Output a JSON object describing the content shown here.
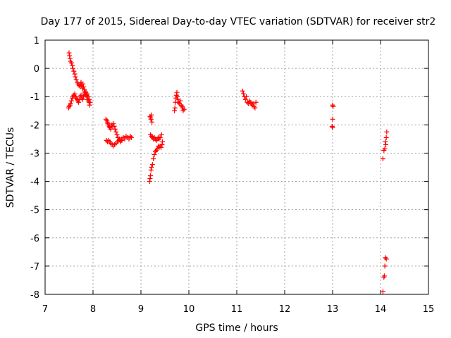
{
  "chart_data": {
    "type": "scatter",
    "title": "Day 177 of 2015, Sidereal Day-to-day VTEC variation (SDTVAR) for receiver str2",
    "xlabel": "GPS time / hours",
    "ylabel": "SDTVAR / TECUs",
    "xlim": [
      7,
      15
    ],
    "ylim": [
      -8,
      1
    ],
    "xticks": [
      "7",
      "8",
      "9",
      "10",
      "11",
      "12",
      "13",
      "14",
      "15"
    ],
    "yticks": [
      "1",
      "0",
      "-1",
      "-2",
      "-3",
      "-4",
      "-5",
      "-6",
      "-7",
      "-8"
    ],
    "grid": true,
    "marker": "+",
    "marker_color": "#ff0000",
    "series": [
      {
        "name": "SDTVAR",
        "points": [
          [
            7.5,
            0.55
          ],
          [
            7.51,
            0.45
          ],
          [
            7.52,
            0.35
          ],
          [
            7.53,
            0.25
          ],
          [
            7.55,
            0.2
          ],
          [
            7.57,
            0.1
          ],
          [
            7.58,
            0.0
          ],
          [
            7.6,
            -0.1
          ],
          [
            7.62,
            -0.2
          ],
          [
            7.63,
            -0.3
          ],
          [
            7.65,
            -0.4
          ],
          [
            7.67,
            -0.5
          ],
          [
            7.69,
            -0.55
          ],
          [
            7.71,
            -0.6
          ],
          [
            7.73,
            -0.65
          ],
          [
            7.74,
            -0.55
          ],
          [
            7.75,
            -0.5
          ],
          [
            7.76,
            -0.6
          ],
          [
            7.78,
            -0.7
          ],
          [
            7.79,
            -0.55
          ],
          [
            7.8,
            -0.65
          ],
          [
            7.82,
            -0.75
          ],
          [
            7.83,
            -0.85
          ],
          [
            7.85,
            -0.95
          ],
          [
            7.87,
            -1.0
          ],
          [
            7.89,
            -1.1
          ],
          [
            7.9,
            -1.15
          ],
          [
            7.92,
            -1.2
          ],
          [
            7.93,
            -1.3
          ],
          [
            7.49,
            -1.4
          ],
          [
            7.5,
            -1.35
          ],
          [
            7.52,
            -1.3
          ],
          [
            7.53,
            -1.25
          ],
          [
            7.55,
            -1.15
          ],
          [
            7.57,
            -1.05
          ],
          [
            7.58,
            -1.0
          ],
          [
            7.6,
            -0.95
          ],
          [
            7.62,
            -0.9
          ],
          [
            7.63,
            -1.0
          ],
          [
            7.65,
            -1.05
          ],
          [
            7.67,
            -1.1
          ],
          [
            7.68,
            -1.15
          ],
          [
            7.7,
            -1.2
          ],
          [
            7.72,
            -1.1
          ],
          [
            7.73,
            -1.0
          ],
          [
            7.75,
            -0.95
          ],
          [
            7.77,
            -1.05
          ],
          [
            7.78,
            -1.1
          ],
          [
            7.8,
            -1.0
          ],
          [
            7.82,
            -0.9
          ],
          [
            7.83,
            -0.8
          ],
          [
            7.85,
            -0.85
          ],
          [
            7.87,
            -0.95
          ],
          [
            7.88,
            -0.9
          ],
          [
            7.9,
            -1.0
          ],
          [
            7.92,
            -1.1
          ],
          [
            7.94,
            -1.2
          ],
          [
            8.27,
            -1.8
          ],
          [
            8.29,
            -1.85
          ],
          [
            8.3,
            -1.9
          ],
          [
            8.31,
            -1.95
          ],
          [
            8.32,
            -2.0
          ],
          [
            8.34,
            -2.05
          ],
          [
            8.35,
            -2.1
          ],
          [
            8.37,
            -2.15
          ],
          [
            8.38,
            -2.0
          ],
          [
            8.4,
            -2.05
          ],
          [
            8.42,
            -1.95
          ],
          [
            8.44,
            -2.05
          ],
          [
            8.46,
            -2.15
          ],
          [
            8.48,
            -2.25
          ],
          [
            8.5,
            -2.35
          ],
          [
            8.52,
            -2.45
          ],
          [
            8.55,
            -2.5
          ],
          [
            8.58,
            -2.55
          ],
          [
            8.6,
            -2.5
          ],
          [
            8.63,
            -2.45
          ],
          [
            8.66,
            -2.5
          ],
          [
            8.69,
            -2.4
          ],
          [
            8.72,
            -2.45
          ],
          [
            8.75,
            -2.5
          ],
          [
            8.78,
            -2.4
          ],
          [
            8.8,
            -2.45
          ],
          [
            8.28,
            -2.55
          ],
          [
            8.3,
            -2.6
          ],
          [
            8.32,
            -2.55
          ],
          [
            8.35,
            -2.6
          ],
          [
            8.37,
            -2.65
          ],
          [
            8.4,
            -2.7
          ],
          [
            8.42,
            -2.75
          ],
          [
            8.45,
            -2.7
          ],
          [
            8.48,
            -2.65
          ],
          [
            8.51,
            -2.6
          ],
          [
            8.54,
            -2.55
          ],
          [
            8.57,
            -2.6
          ],
          [
            8.6,
            -2.55
          ],
          [
            9.18,
            -4.0
          ],
          [
            9.19,
            -3.9
          ],
          [
            9.2,
            -3.8
          ],
          [
            9.21,
            -3.6
          ],
          [
            9.22,
            -3.5
          ],
          [
            9.24,
            -3.4
          ],
          [
            9.26,
            -3.2
          ],
          [
            9.28,
            -3.05
          ],
          [
            9.3,
            -2.95
          ],
          [
            9.32,
            -2.9
          ],
          [
            9.34,
            -2.85
          ],
          [
            9.36,
            -2.75
          ],
          [
            9.38,
            -2.8
          ],
          [
            9.4,
            -2.75
          ],
          [
            9.42,
            -2.8
          ],
          [
            9.44,
            -2.7
          ],
          [
            9.45,
            -2.6
          ],
          [
            9.19,
            -1.7
          ],
          [
            9.2,
            -1.75
          ],
          [
            9.21,
            -1.8
          ],
          [
            9.22,
            -1.65
          ],
          [
            9.23,
            -1.9
          ],
          [
            9.2,
            -2.35
          ],
          [
            9.22,
            -2.4
          ],
          [
            9.24,
            -2.45
          ],
          [
            9.26,
            -2.5
          ],
          [
            9.28,
            -2.45
          ],
          [
            9.3,
            -2.5
          ],
          [
            9.32,
            -2.55
          ],
          [
            9.34,
            -2.5
          ],
          [
            9.36,
            -2.45
          ],
          [
            9.38,
            -2.5
          ],
          [
            9.4,
            -2.45
          ],
          [
            9.43,
            -2.35
          ],
          [
            9.7,
            -1.5
          ],
          [
            9.71,
            -1.4
          ],
          [
            9.72,
            -1.2
          ],
          [
            9.73,
            -1.05
          ],
          [
            9.74,
            -0.95
          ],
          [
            9.75,
            -0.85
          ],
          [
            9.76,
            -1.0
          ],
          [
            9.77,
            -1.1
          ],
          [
            9.78,
            -1.2
          ],
          [
            9.8,
            -1.25
          ],
          [
            9.82,
            -1.15
          ],
          [
            9.84,
            -1.3
          ],
          [
            9.86,
            -1.35
          ],
          [
            9.87,
            -1.4
          ],
          [
            9.88,
            -1.5
          ],
          [
            9.9,
            -1.45
          ],
          [
            11.12,
            -0.8
          ],
          [
            11.14,
            -0.9
          ],
          [
            11.16,
            -1.0
          ],
          [
            11.18,
            -1.1
          ],
          [
            11.2,
            -1.0
          ],
          [
            11.22,
            -1.2
          ],
          [
            11.24,
            -1.25
          ],
          [
            11.26,
            -1.15
          ],
          [
            11.28,
            -1.2
          ],
          [
            11.3,
            -1.25
          ],
          [
            11.32,
            -1.3
          ],
          [
            11.34,
            -1.25
          ],
          [
            11.36,
            -1.35
          ],
          [
            11.38,
            -1.4
          ],
          [
            11.4,
            -1.2
          ],
          [
            13.0,
            -1.3
          ],
          [
            13.01,
            -1.35
          ],
          [
            13.0,
            -1.8
          ],
          [
            12.99,
            -2.05
          ],
          [
            13.0,
            -2.1
          ],
          [
            14.05,
            -3.2
          ],
          [
            14.07,
            -2.9
          ],
          [
            14.09,
            -2.85
          ],
          [
            14.1,
            -2.6
          ],
          [
            14.11,
            -2.7
          ],
          [
            14.12,
            -2.45
          ],
          [
            14.13,
            -2.25
          ],
          [
            14.05,
            -7.9
          ],
          [
            14.07,
            -7.4
          ],
          [
            14.09,
            -7.0
          ],
          [
            14.1,
            -6.7
          ],
          [
            14.12,
            -6.75
          ],
          [
            14.08,
            -7.35
          ]
        ]
      }
    ]
  }
}
